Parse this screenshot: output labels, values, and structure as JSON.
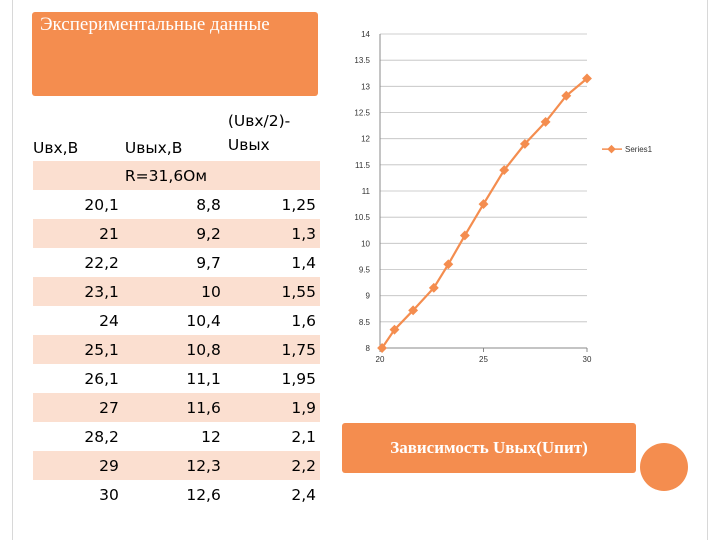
{
  "title": "Экспериментальные данные",
  "table": {
    "headers": [
      "Uвх,В",
      "Uвых,В",
      "(Uвх/2)-Uвых"
    ],
    "subheader": "R=31,6Ом",
    "rows": [
      [
        "20,1",
        "8,8",
        "1,25"
      ],
      [
        "21",
        "9,2",
        "1,3"
      ],
      [
        "22,2",
        "9,7",
        "1,4"
      ],
      [
        "23,1",
        "10",
        "1,55"
      ],
      [
        "24",
        "10,4",
        "1,6"
      ],
      [
        "25,1",
        "10,8",
        "1,75"
      ],
      [
        "26,1",
        "11,1",
        "1,95"
      ],
      [
        "27",
        "11,6",
        "1,9"
      ],
      [
        "28,2",
        "12",
        "2,1"
      ],
      [
        "29",
        "12,3",
        "2,2"
      ],
      [
        "30",
        "12,6",
        "2,4"
      ]
    ]
  },
  "caption": "Зависимость Uвых(Uпит)",
  "colors": {
    "accent": "#f48d4f",
    "row_band": "#fbdfd0",
    "grid": "#bfbfbf"
  },
  "chart_data": {
    "type": "line",
    "title": "",
    "xlabel": "",
    "ylabel": "",
    "xlim": [
      20,
      30
    ],
    "ylim": [
      8,
      14
    ],
    "x_ticks": [
      "20",
      "25",
      "30"
    ],
    "y_ticks": [
      "8",
      "8.5",
      "9",
      "9.5",
      "10",
      "10.5",
      "11",
      "11.5",
      "12",
      "12.5",
      "13",
      "13.5",
      "14"
    ],
    "legend_position": "right",
    "series": [
      {
        "name": "Series1",
        "color": "#f48d4f",
        "x": [
          20.1,
          20.7,
          21.6,
          22.6,
          23.3,
          24.1,
          25.0,
          26.0,
          27.0,
          28.0,
          29.0,
          30.0
        ],
        "y": [
          8.0,
          8.35,
          8.72,
          9.15,
          9.6,
          10.15,
          10.75,
          11.4,
          11.9,
          12.32,
          12.82,
          13.15
        ]
      }
    ]
  }
}
